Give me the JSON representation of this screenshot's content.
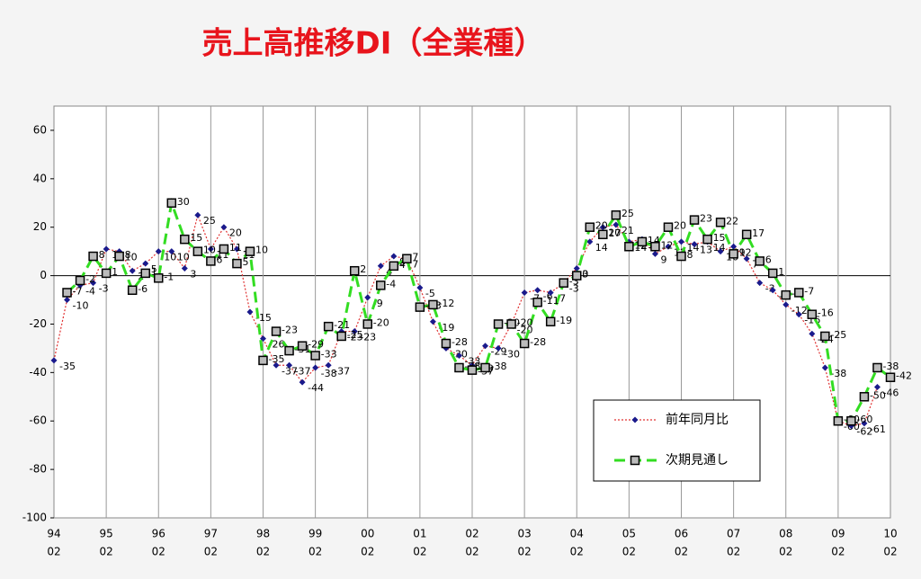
{
  "chart_data": {
    "type": "line",
    "title": "売上高推移DI（全業種）",
    "categories": [
      [
        "94",
        "02"
      ],
      null,
      null,
      null,
      [
        "95",
        "02"
      ],
      null,
      null,
      null,
      [
        "96",
        "02"
      ],
      null,
      null,
      null,
      [
        "97",
        "02"
      ],
      null,
      null,
      null,
      [
        "98",
        "02"
      ],
      null,
      null,
      null,
      [
        "99",
        "02"
      ],
      null,
      null,
      null,
      [
        "00",
        "02"
      ],
      null,
      null,
      null,
      [
        "01",
        "02"
      ],
      null,
      null,
      null,
      [
        "02",
        "02"
      ],
      null,
      null,
      null,
      [
        "03",
        "02"
      ],
      null,
      null,
      null,
      [
        "04",
        "02"
      ],
      null,
      null,
      null,
      [
        "05",
        "02"
      ],
      null,
      null,
      null,
      [
        "06",
        "02"
      ],
      null,
      null,
      null,
      [
        "07",
        "02"
      ],
      null,
      null,
      null,
      [
        "08",
        "02"
      ],
      null,
      null,
      null,
      [
        "09",
        "02"
      ],
      null,
      null,
      null,
      [
        "10",
        "02"
      ]
    ],
    "series": [
      {
        "name": "前年同月比",
        "color": "#e03030",
        "marker_color": "#1a1a8c",
        "values": [
          -35,
          -10,
          -4,
          -3,
          11,
          10,
          2,
          5,
          10,
          10,
          3,
          25,
          11,
          20,
          11,
          -15,
          -26,
          -37,
          -37,
          -44,
          -38,
          -37,
          -23,
          -23,
          -9,
          4,
          8,
          7,
          -5,
          -19,
          -30,
          -33,
          -37,
          -29,
          -30,
          -20,
          -7,
          -6,
          -7,
          -3,
          3,
          14,
          20,
          21,
          14,
          15,
          9,
          12,
          14,
          13,
          14,
          10,
          12,
          7,
          -3,
          -6,
          -12,
          -16,
          -24,
          -38,
          -60,
          -62,
          -61,
          -46,
          null
        ]
      },
      {
        "name": "次期見通し",
        "color": "#33dd22",
        "marker_color": "#000000",
        "values": [
          null,
          -7,
          -2,
          8,
          1,
          8,
          -6,
          1,
          -1,
          30,
          15,
          10,
          6,
          11,
          5,
          10,
          -35,
          -23,
          -31,
          -29,
          -33,
          -21,
          -25,
          2,
          -20,
          -4,
          4,
          7,
          -13,
          -12,
          -28,
          -38,
          -39,
          -38,
          -20,
          -20,
          -28,
          -11,
          -19,
          -3,
          0,
          20,
          17,
          25,
          12,
          14,
          12,
          20,
          8,
          23,
          15,
          22,
          9,
          17,
          6,
          1,
          -8,
          -7,
          -16,
          -25,
          -60,
          -60,
          -50,
          -38,
          -42
        ]
      }
    ],
    "ylim": [
      -100,
      70
    ],
    "yticks": [
      -100,
      -80,
      -60,
      -40,
      -20,
      0,
      20,
      40,
      60
    ]
  }
}
